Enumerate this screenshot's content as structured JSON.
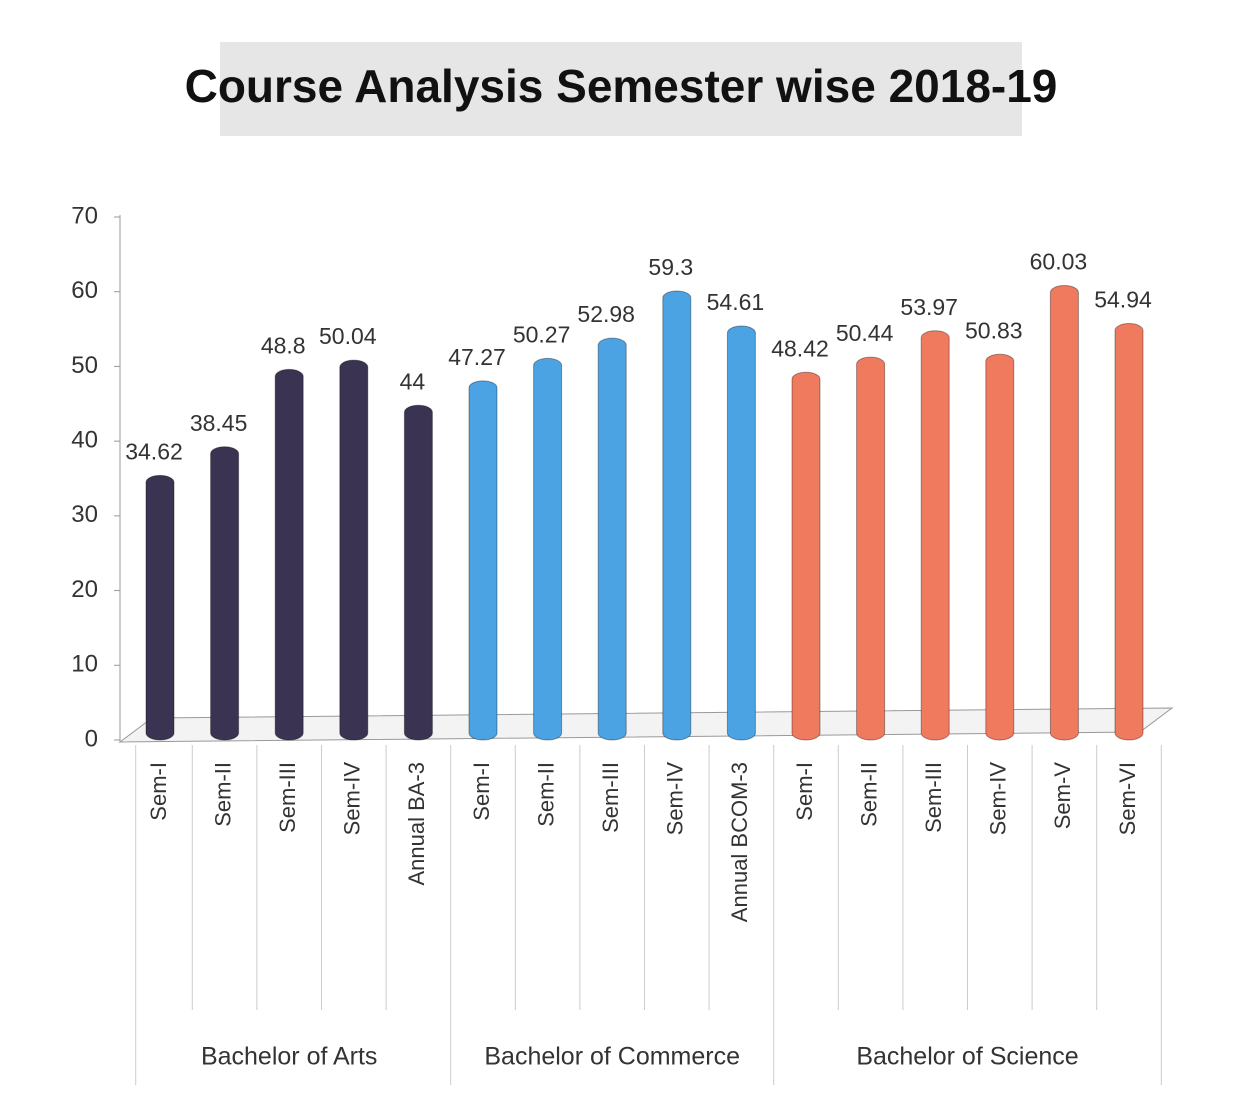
{
  "chart_data": {
    "type": "bar",
    "title": "Course Analysis Semester wise 2018-19",
    "ylim": [
      0,
      70
    ],
    "yticks": [
      0,
      10,
      20,
      30,
      40,
      50,
      60,
      70
    ],
    "groups": [
      {
        "name": "Bachelor of Arts",
        "color": "#3a3352",
        "categories": [
          "Sem-I",
          "Sem-II",
          "Sem-III",
          "Sem-IV",
          "Annual BA-3"
        ],
        "values": [
          34.62,
          38.45,
          48.8,
          50.04,
          44
        ]
      },
      {
        "name": "Bachelor of Commerce",
        "color": "#4ba3e3",
        "categories": [
          "Sem-I",
          "Sem-II",
          "Sem-III",
          "Sem-IV",
          "Annual BCOM-3"
        ],
        "values": [
          47.27,
          50.27,
          52.98,
          59.3,
          54.61
        ]
      },
      {
        "name": "Bachelor of Science",
        "color": "#f07a5e",
        "categories": [
          "Sem-I",
          "Sem-II",
          "Sem-III",
          "Sem-IV",
          "Sem-V",
          "Sem-VI"
        ],
        "values": [
          48.42,
          50.44,
          53.97,
          50.83,
          60.03,
          54.94
        ]
      }
    ]
  }
}
